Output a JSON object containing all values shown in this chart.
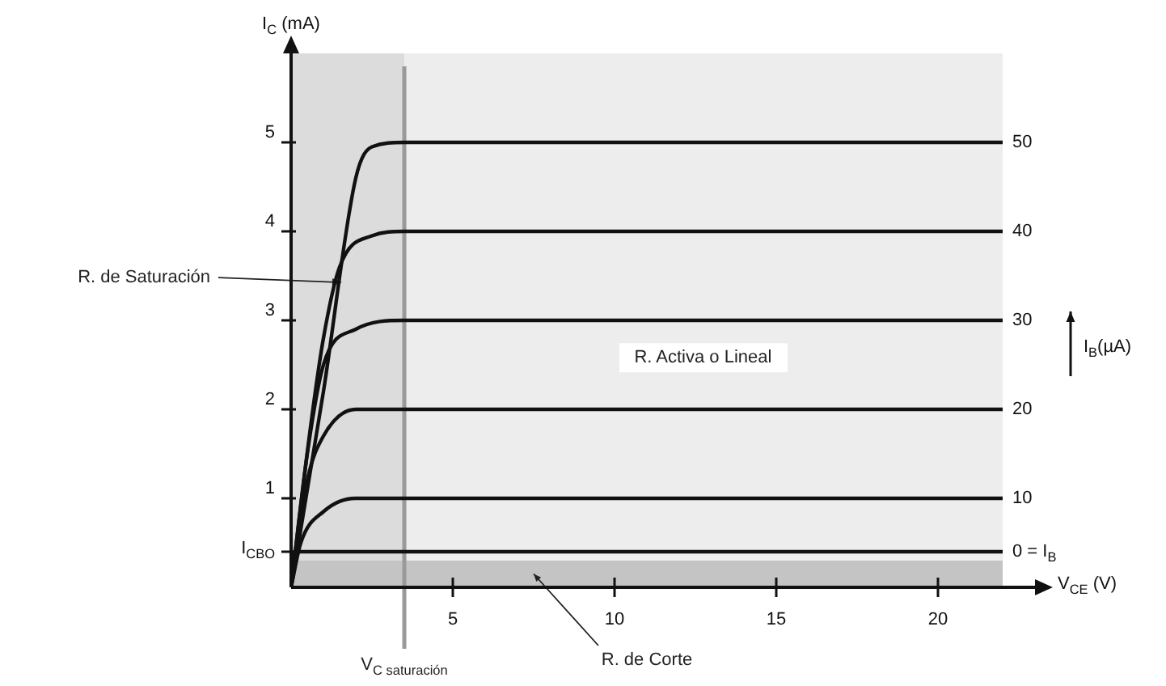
{
  "chart_data": {
    "type": "line",
    "xlabel": "V$_{CE}$ (V)",
    "ylabel": "I$_{C}$ (mA)",
    "legend_title": "I$_{B}$(µA)",
    "xlim": [
      0,
      23
    ],
    "ylim": [
      0,
      6
    ],
    "xticks": [
      5,
      10,
      15,
      20
    ],
    "yticks": [
      {
        "value": 0.4,
        "label": "I$_{CBO}$"
      },
      1,
      2,
      3,
      4,
      5
    ],
    "series": [
      {
        "name": "50",
        "color": "#111111",
        "x": [
          0,
          1,
          2,
          2.5,
          3.5,
          22
        ],
        "values": [
          0,
          2.2,
          4.6,
          4.95,
          5,
          5
        ]
      },
      {
        "name": "40",
        "color": "#111111",
        "x": [
          0,
          0.6,
          1,
          1.5,
          2.5,
          3.5,
          22
        ],
        "values": [
          0,
          1.8,
          2.8,
          3.6,
          3.95,
          4,
          4
        ]
      },
      {
        "name": "30",
        "color": "#111111",
        "x": [
          0,
          0.5,
          1,
          2,
          3.5,
          22
        ],
        "values": [
          0,
          1.5,
          2.5,
          2.9,
          3,
          3
        ]
      },
      {
        "name": "20",
        "color": "#111111",
        "x": [
          0,
          0.5,
          1,
          2,
          22
        ],
        "values": [
          0,
          1.2,
          1.7,
          2,
          2
        ]
      },
      {
        "name": "10",
        "color": "#111111",
        "x": [
          0,
          0.3,
          1,
          2,
          22
        ],
        "values": [
          0,
          0.5,
          0.85,
          1,
          1
        ]
      },
      {
        "name": "0 = I$_{B}$",
        "color": "#111111",
        "x": [
          0,
          0.1,
          22
        ],
        "values": [
          0,
          0.4,
          0.4
        ]
      }
    ],
    "ref_lines": [
      {
        "axis": "x",
        "value": 3.5,
        "color": "#9a9a9a",
        "label": "V$_{C saturación}$"
      }
    ],
    "bands": [
      {
        "axis": "x",
        "from": 0,
        "to": 3.5,
        "label": "R. de Saturación",
        "color": "#dcdcdc"
      },
      {
        "axis": "x",
        "from": 3.5,
        "to": 22,
        "label": "R. Activa o Lineal",
        "color": "#ededed"
      },
      {
        "axis": "y",
        "from": 0,
        "to": 0.3,
        "label": "R. de Corte",
        "color": "#c4c4c4"
      }
    ],
    "legend": "right",
    "grid": false,
    "marker": "none",
    "line_style": "solid"
  }
}
